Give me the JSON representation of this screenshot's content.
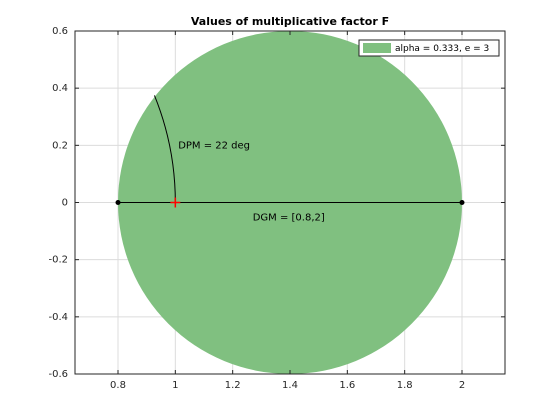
{
  "chart_data": {
    "type": "area",
    "title": "Values of multiplicative factor F",
    "xlabel": "",
    "ylabel": "",
    "xlim": [
      0.65,
      2.15
    ],
    "ylim": [
      -0.6,
      0.6
    ],
    "x_ticks": [
      0.8,
      1,
      1.2,
      1.4,
      1.6,
      1.8,
      2
    ],
    "x_tick_labels": [
      "0.8",
      "1",
      "1.2",
      "1.4",
      "1.6",
      "1.8",
      "2"
    ],
    "y_ticks": [
      0.6,
      0.4,
      0.2,
      0,
      -0.2,
      -0.4,
      -0.6
    ],
    "y_tick_labels": [
      "0.6",
      "0.4",
      "0.2",
      "0",
      "-0.2",
      "-0.4",
      "-0.6"
    ],
    "grid": true,
    "legend_position": "top-right",
    "series": [
      {
        "name": "alpha = 0.333, e = 3",
        "shape": "disk",
        "center": [
          1.4,
          0
        ],
        "radius": 0.6,
        "color": "#80c080"
      }
    ],
    "gain_margin": {
      "label": "DGM = [0.8,2]",
      "range": [
        0.8,
        2
      ],
      "color": "#000000"
    },
    "phase_margin": {
      "label": "DPM = 22 deg",
      "degrees": 22,
      "center": [
        0,
        0
      ],
      "radius": 1,
      "color": "#000000"
    },
    "nominal_point": {
      "x": 1,
      "y": 0,
      "marker": "plus",
      "color": "#ff0000"
    }
  }
}
